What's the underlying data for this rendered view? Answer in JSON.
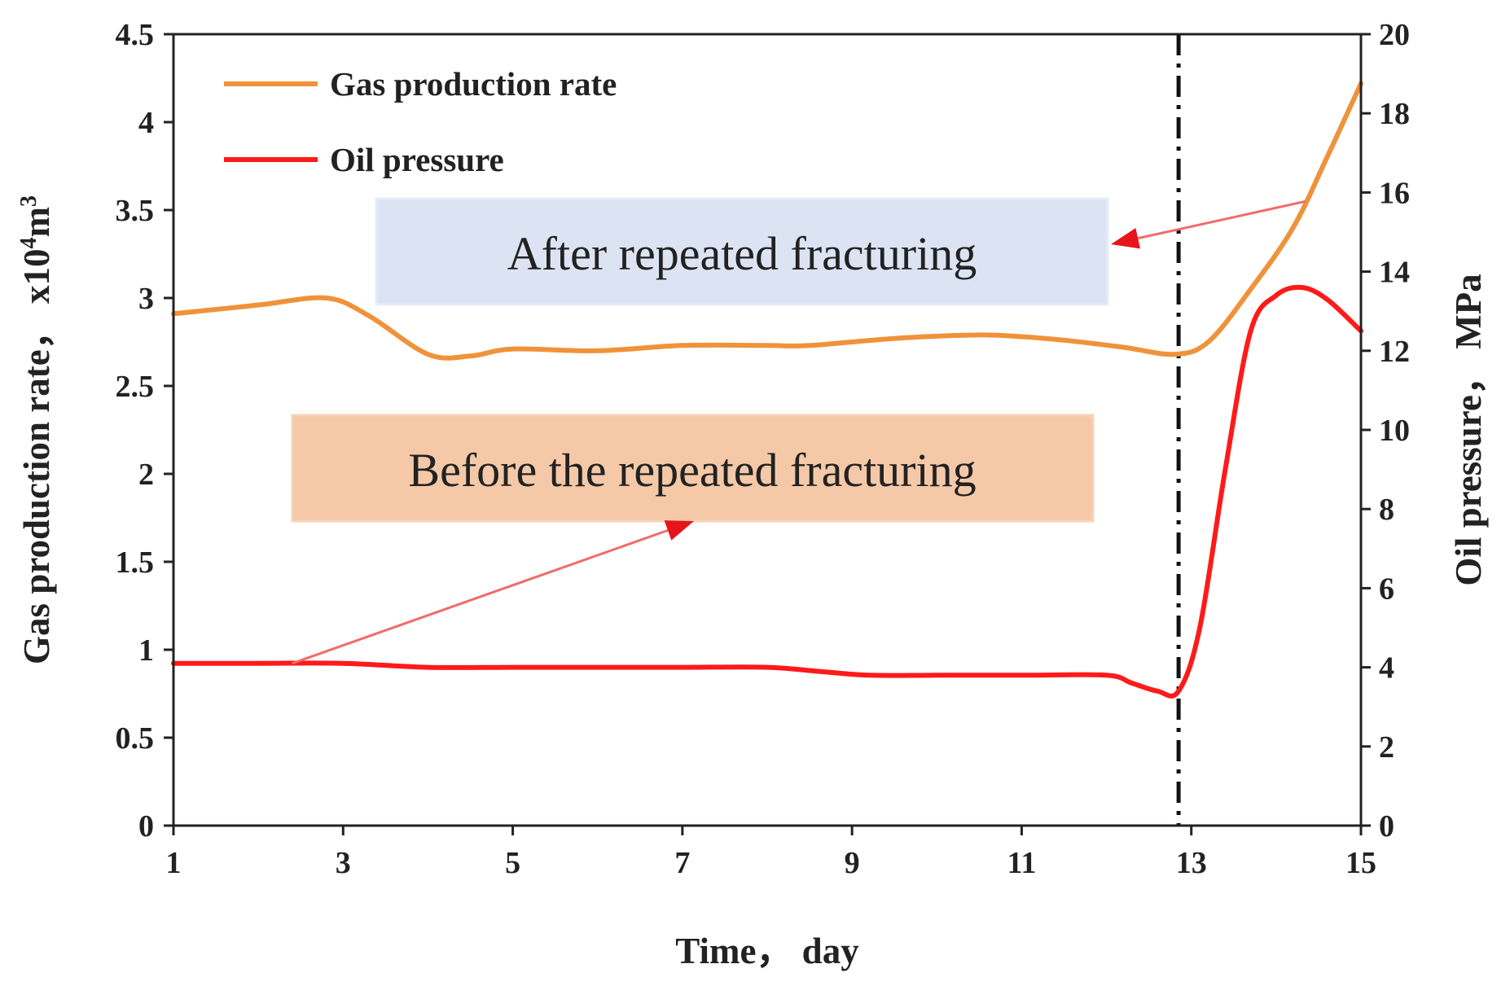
{
  "chart_data": {
    "type": "line",
    "x_axis": {
      "label": "Time，  day",
      "range": [
        1,
        15
      ],
      "ticks": [
        "1",
        "3",
        "5",
        "7",
        "9",
        "11",
        "13",
        "15"
      ]
    },
    "y_axis_left": {
      "label": "Gas production rate，  x10",
      "label_sup1": "4",
      "label_mid": "m",
      "label_sup2": "3",
      "range": [
        0,
        4.5
      ],
      "ticks": [
        "0",
        "0.5",
        "1",
        "1.5",
        "2",
        "2.5",
        "3",
        "3.5",
        "4",
        "4.5"
      ]
    },
    "y_axis_right": {
      "label": "Oil pressure，  MPa",
      "range": [
        0,
        20
      ],
      "ticks": [
        "0",
        "2",
        "4",
        "6",
        "8",
        "10",
        "12",
        "14",
        "16",
        "18",
        "20"
      ]
    },
    "series": [
      {
        "name": "Gas production rate",
        "axis": "left",
        "color": "#F0923A",
        "x": [
          1,
          2,
          2.8,
          3.3,
          4,
          4.5,
          5,
          6,
          7,
          8,
          8.5,
          9.5,
          10.5,
          11,
          11.5,
          12.2,
          12.8,
          13.2,
          13.7,
          14.2,
          14.6,
          15
        ],
        "y": [
          2.91,
          2.96,
          3.0,
          2.9,
          2.68,
          2.67,
          2.71,
          2.7,
          2.73,
          2.73,
          2.73,
          2.77,
          2.79,
          2.78,
          2.76,
          2.72,
          2.68,
          2.75,
          3.05,
          3.4,
          3.8,
          4.22
        ]
      },
      {
        "name": "Oil pressure",
        "axis": "right",
        "color": "#FF1A1A",
        "x": [
          1,
          2,
          3,
          4,
          5,
          6,
          7,
          8,
          8.6,
          9.2,
          10,
          11,
          12,
          12.3,
          12.6,
          12.85,
          13.1,
          13.4,
          13.7,
          14.0,
          14.3,
          14.6,
          15
        ],
        "y": [
          4.1,
          4.1,
          4.1,
          4.0,
          4.0,
          4.0,
          4.0,
          4.0,
          3.9,
          3.8,
          3.8,
          3.8,
          3.8,
          3.6,
          3.4,
          3.4,
          5.0,
          9.0,
          12.5,
          13.4,
          13.6,
          13.3,
          12.5
        ]
      }
    ],
    "vertical_marker": {
      "x": 12.85,
      "style": "dash-dot",
      "color": "#111111"
    },
    "legend": {
      "position": "top-left",
      "entries": [
        "Gas production rate",
        "Oil pressure"
      ]
    },
    "annotations": [
      {
        "text": "After repeated fracturing",
        "box_color": "#DCE4F4",
        "arrow_color": "#F26B6B",
        "points_to": "Gas production rate"
      },
      {
        "text": "Before the repeated fracturing",
        "box_color": "#F5C9A8",
        "arrow_color": "#F26B6B",
        "points_to": "Oil pressure"
      }
    ],
    "grid": false
  }
}
